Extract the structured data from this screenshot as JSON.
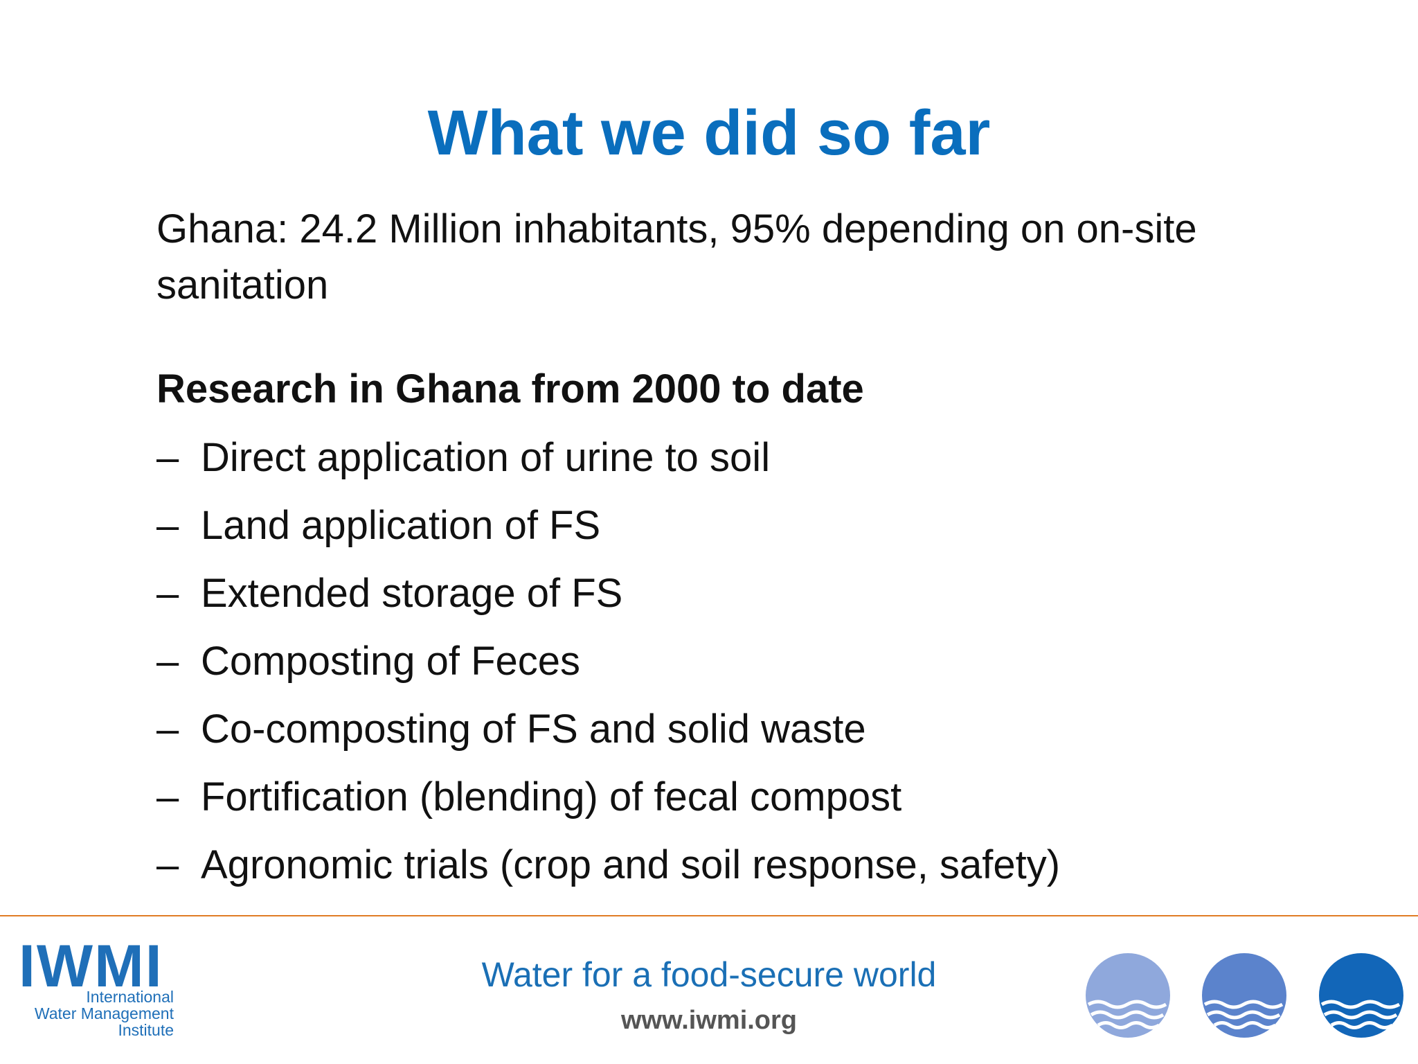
{
  "title": "What we did so far",
  "intro": "Ghana: 24.2 Million inhabitants, 95% depending on on-site sanitation",
  "heading": "Research in Ghana from 2000 to date",
  "bullet": "–",
  "items": [
    "Direct application of urine to soil",
    "Land application of FS",
    "Extended storage of FS",
    "Composting of Feces",
    "Co-composting of FS and solid waste",
    "Fortification (blending) of fecal compost",
    "Agronomic trials (crop and soil response, safety)"
  ],
  "footer": {
    "tagline": "Water for a food-secure world",
    "url": "www.iwmi.org",
    "logo": {
      "mark": "IWMI",
      "lines": [
        "International",
        "Water Management",
        "Institute"
      ]
    }
  }
}
